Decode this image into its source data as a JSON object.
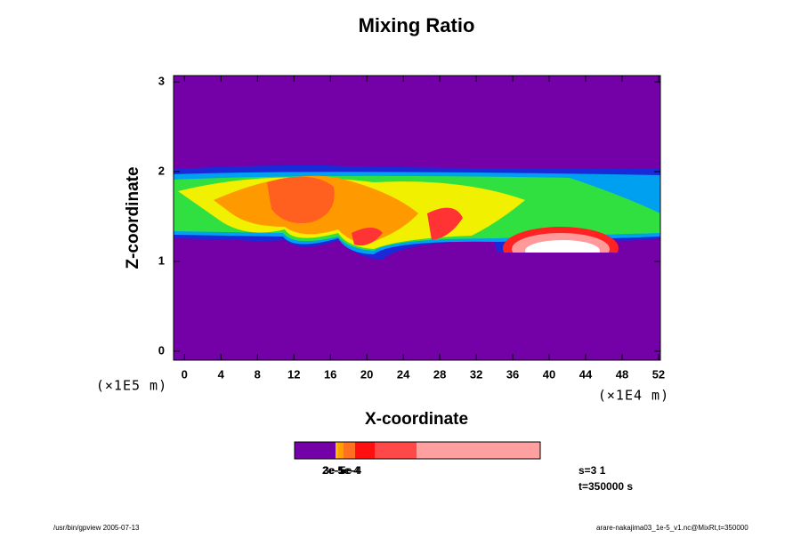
{
  "chart_data": {
    "type": "contour",
    "title": "Mixing Ratio",
    "xlabel": "X-coordinate",
    "ylabel": "Z-coordinate",
    "x_multiplier": "(×1E4 m)",
    "y_multiplier": "(×1E5 m)",
    "xlim": [
      -1.2,
      52.2
    ],
    "ylim": [
      -0.1,
      3.07
    ],
    "xticks": [
      0,
      4,
      8,
      12,
      16,
      20,
      24,
      28,
      32,
      36,
      40,
      44,
      48,
      52
    ],
    "yticks": [
      0,
      1,
      2,
      3
    ],
    "colorbar_labels": [
      "2e-5",
      "3e-5",
      "1e-4",
      "5e-4"
    ],
    "info": [
      "s=3 1",
      "t=350000 s"
    ],
    "footer_left": "/usr/bin/gpview 2005-07-13",
    "footer_right": "arare-nakajima03_1e-5_v1.nc@MixRt,t=350000"
  }
}
